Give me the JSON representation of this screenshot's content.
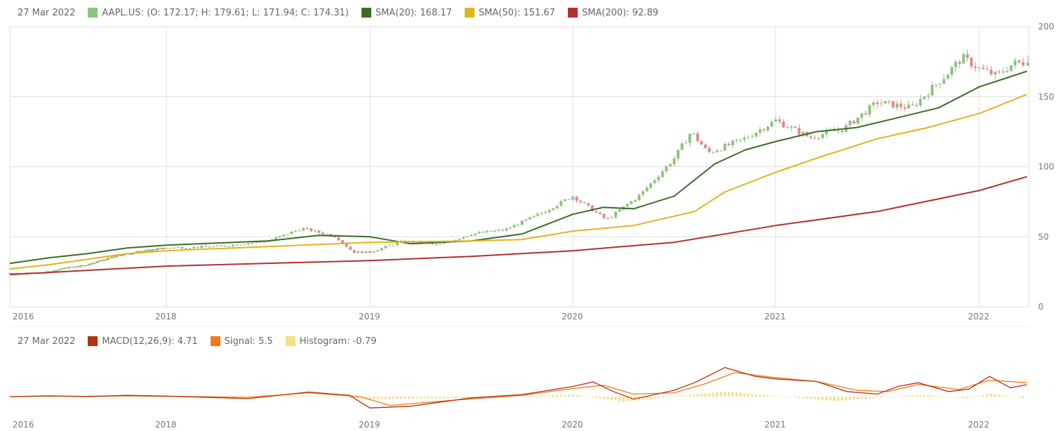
{
  "price_legend": {
    "date": "27 Mar 2022",
    "ohlc_label": "AAPL.US: (O: 172.17; H: 179.61; L: 171.94; C: 174.31)",
    "sma20_label": "SMA(20): 168.17",
    "sma50_label": "SMA(50): 151.67",
    "sma200_label": "SMA(200): 92.89"
  },
  "macd_legend": {
    "date": "27 Mar 2022",
    "macd_label": "MACD(12,26,9): 4.71",
    "signal_label": "Signal: 5.5",
    "histogram_label": "Histogram: -0.79"
  },
  "colors": {
    "candle_up": "#8cc47e",
    "candle_down": "#e08a8a",
    "sma20": "#3a6e2a",
    "sma50": "#e0b41c",
    "sma200": "#b03030",
    "macd": "#b43010",
    "signal": "#f07818",
    "histogram": "#f8dc88",
    "grid": "#dddddd"
  },
  "chart_data": [
    {
      "type": "candlestick",
      "symbol": "AAPL.US",
      "x_ticks": [
        "2016",
        "2018",
        "2019",
        "2020",
        "2021",
        "2022"
      ],
      "y_ticks": [
        0,
        50,
        100,
        150,
        200
      ],
      "ylim": [
        0,
        200
      ],
      "grid": true,
      "last_candle": {
        "date": "27 Mar 2022",
        "open": 172.17,
        "high": 179.61,
        "low": 171.94,
        "close": 174.31
      },
      "weekly_close_approx": [
        [
          "2016-01",
          24
        ],
        [
          "2016-06",
          24
        ],
        [
          "2016-10",
          28
        ],
        [
          "2017-01",
          30
        ],
        [
          "2017-06",
          37
        ],
        [
          "2017-10",
          40
        ],
        [
          "2018-01",
          42
        ],
        [
          "2018-04",
          43
        ],
        [
          "2018-07",
          47
        ],
        [
          "2018-09",
          56
        ],
        [
          "2018-11",
          50
        ],
        [
          "2018-12",
          39
        ],
        [
          "2019-01",
          39
        ],
        [
          "2019-03",
          47
        ],
        [
          "2019-05",
          44
        ],
        [
          "2019-07",
          52
        ],
        [
          "2019-09",
          55
        ],
        [
          "2019-11",
          66
        ],
        [
          "2020-01",
          79
        ],
        [
          "2020-03",
          62
        ],
        [
          "2020-05",
          80
        ],
        [
          "2020-07",
          106
        ],
        [
          "2020-08",
          125
        ],
        [
          "2020-09",
          110
        ],
        [
          "2020-11",
          119
        ],
        [
          "2021-01",
          133
        ],
        [
          "2021-03",
          121
        ],
        [
          "2021-05",
          127
        ],
        [
          "2021-07",
          146
        ],
        [
          "2021-09",
          142
        ],
        [
          "2021-11",
          165
        ],
        [
          "2021-12",
          178
        ],
        [
          "2022-01",
          170
        ],
        [
          "2022-02",
          165
        ],
        [
          "2022-03",
          174
        ]
      ],
      "series": [
        {
          "name": "SMA(20)",
          "last": 168.17,
          "values_approx": [
            [
              2016.0,
              31
            ],
            [
              2016.5,
              35
            ],
            [
              2017.0,
              38
            ],
            [
              2017.5,
              42
            ],
            [
              2018.0,
              44
            ],
            [
              2018.5,
              47
            ],
            [
              2018.75,
              51
            ],
            [
              2019.0,
              50
            ],
            [
              2019.2,
              45
            ],
            [
              2019.5,
              47
            ],
            [
              2019.75,
              52
            ],
            [
              2020.0,
              66
            ],
            [
              2020.15,
              71
            ],
            [
              2020.3,
              70
            ],
            [
              2020.5,
              79
            ],
            [
              2020.7,
              102
            ],
            [
              2020.85,
              112
            ],
            [
              2021.0,
              118
            ],
            [
              2021.2,
              125
            ],
            [
              2021.4,
              128
            ],
            [
              2021.6,
              135
            ],
            [
              2021.8,
              142
            ],
            [
              2022.0,
              157
            ],
            [
              2022.23,
              168.17
            ]
          ]
        },
        {
          "name": "SMA(50)",
          "last": 151.67,
          "values_approx": [
            [
              2016.0,
              27
            ],
            [
              2016.5,
              30
            ],
            [
              2017.0,
              34
            ],
            [
              2017.5,
              38
            ],
            [
              2018.0,
              40
            ],
            [
              2018.5,
              43
            ],
            [
              2019.0,
              46
            ],
            [
              2019.5,
              47
            ],
            [
              2019.75,
              48
            ],
            [
              2020.0,
              54
            ],
            [
              2020.3,
              58
            ],
            [
              2020.6,
              68
            ],
            [
              2020.75,
              82
            ],
            [
              2021.0,
              96
            ],
            [
              2021.2,
              106
            ],
            [
              2021.5,
              120
            ],
            [
              2021.75,
              128
            ],
            [
              2022.0,
              138
            ],
            [
              2022.23,
              151.67
            ]
          ]
        },
        {
          "name": "SMA(200)",
          "last": 92.89,
          "values_approx": [
            [
              2016.0,
              23
            ],
            [
              2017.0,
              26
            ],
            [
              2018.0,
              29
            ],
            [
              2019.0,
              33
            ],
            [
              2019.5,
              36
            ],
            [
              2020.0,
              40
            ],
            [
              2020.5,
              46
            ],
            [
              2020.75,
              52
            ],
            [
              2021.0,
              58
            ],
            [
              2021.5,
              68
            ],
            [
              2022.0,
              83
            ],
            [
              2022.23,
              92.89
            ]
          ]
        }
      ]
    },
    {
      "type": "line",
      "title": "MACD(12,26,9)",
      "x_ticks": [
        "2016",
        "2018",
        "2019",
        "2020",
        "2021",
        "2022"
      ],
      "last_values": {
        "macd": 4.71,
        "signal": 5.5,
        "histogram": -0.79
      },
      "series": [
        {
          "name": "MACD(12,26,9)",
          "values_approx": [
            [
              2016.0,
              0
            ],
            [
              2016.5,
              0.3
            ],
            [
              2017.0,
              0
            ],
            [
              2017.5,
              0.5
            ],
            [
              2018.0,
              0.2
            ],
            [
              2018.4,
              -0.8
            ],
            [
              2018.7,
              1.8
            ],
            [
              2018.9,
              0.5
            ],
            [
              2019.0,
              -4.5
            ],
            [
              2019.2,
              -3.8
            ],
            [
              2019.5,
              -0.5
            ],
            [
              2019.75,
              0.8
            ],
            [
              2020.0,
              4
            ],
            [
              2020.1,
              5.8
            ],
            [
              2020.2,
              2
            ],
            [
              2020.3,
              -1
            ],
            [
              2020.5,
              2.5
            ],
            [
              2020.6,
              5.5
            ],
            [
              2020.75,
              11.5
            ],
            [
              2020.9,
              8
            ],
            [
              2021.0,
              7
            ],
            [
              2021.2,
              6
            ],
            [
              2021.35,
              2
            ],
            [
              2021.5,
              1
            ],
            [
              2021.6,
              4
            ],
            [
              2021.7,
              5.5
            ],
            [
              2021.85,
              2
            ],
            [
              2021.95,
              3
            ],
            [
              2022.05,
              8
            ],
            [
              2022.15,
              3.5
            ],
            [
              2022.23,
              4.71
            ]
          ]
        },
        {
          "name": "Signal",
          "values_approx": [
            [
              2016.0,
              0
            ],
            [
              2016.5,
              0.2
            ],
            [
              2017.0,
              0.1
            ],
            [
              2017.5,
              0.3
            ],
            [
              2018.0,
              0.1
            ],
            [
              2018.4,
              -0.3
            ],
            [
              2018.7,
              1.5
            ],
            [
              2018.95,
              0
            ],
            [
              2019.1,
              -3.5
            ],
            [
              2019.4,
              -1.5
            ],
            [
              2019.75,
              0.5
            ],
            [
              2020.0,
              3.2
            ],
            [
              2020.15,
              4.5
            ],
            [
              2020.3,
              1
            ],
            [
              2020.5,
              1.5
            ],
            [
              2020.65,
              5
            ],
            [
              2020.8,
              9.5
            ],
            [
              2021.0,
              7.5
            ],
            [
              2021.2,
              6
            ],
            [
              2021.4,
              2.5
            ],
            [
              2021.55,
              2
            ],
            [
              2021.7,
              4.8
            ],
            [
              2021.9,
              2.8
            ],
            [
              2022.05,
              6.5
            ],
            [
              2022.23,
              5.5
            ]
          ]
        },
        {
          "name": "Histogram",
          "values_approx": [
            [
              2016.0,
              0
            ],
            [
              2018.7,
              0.3
            ],
            [
              2019.0,
              -1
            ],
            [
              2019.5,
              -0.5
            ],
            [
              2020.0,
              0.8
            ],
            [
              2020.25,
              -2
            ],
            [
              2020.75,
              2
            ],
            [
              2021.3,
              -1.8
            ],
            [
              2021.7,
              0.8
            ],
            [
              2021.95,
              -0.6
            ],
            [
              2022.05,
              1.2
            ],
            [
              2022.23,
              -0.79
            ]
          ]
        }
      ]
    }
  ]
}
